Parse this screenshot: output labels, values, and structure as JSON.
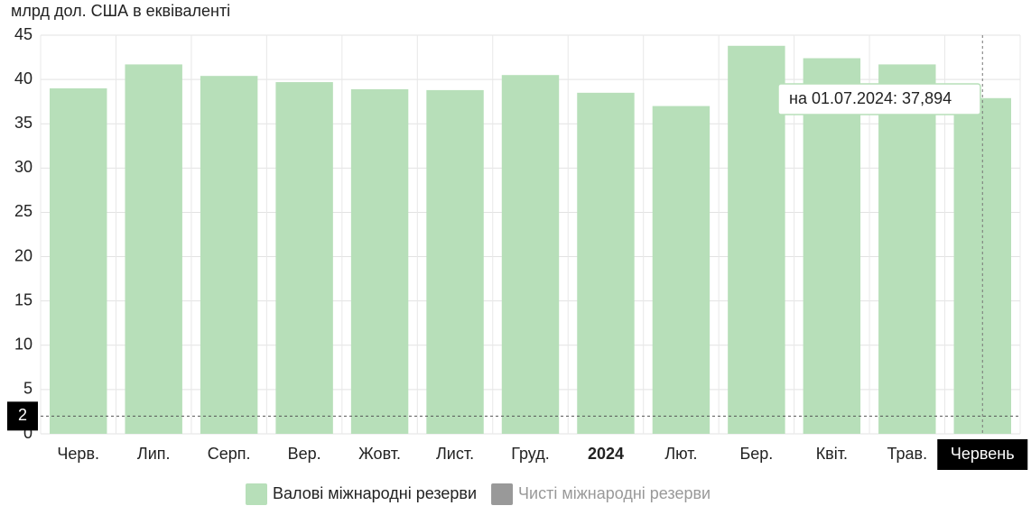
{
  "chart_data": {
    "type": "bar",
    "title": "млрд дол. США в еквіваленті",
    "categories": [
      "Черв.",
      "Лип.",
      "Серп.",
      "Вер.",
      "Жовт.",
      "Лист.",
      "Груд.",
      "2024",
      "Лют.",
      "Бер.",
      "Квіт.",
      "Трав.",
      "Червень"
    ],
    "bold_category": 7,
    "highlight_index": 12,
    "series": [
      {
        "name": "Валові міжнародні резерви",
        "color": "#b7dfb9",
        "values": [
          39.0,
          41.7,
          40.4,
          39.7,
          38.9,
          38.8,
          40.5,
          38.5,
          37.0,
          43.8,
          42.4,
          41.7,
          37.894
        ]
      },
      {
        "name": "Чисті міжнародні резерви",
        "color": "#999999",
        "visible": false
      }
    ],
    "tooltip": "на 01.07.2024: 37,894",
    "crosshair_y": 2,
    "ylim": [
      0,
      45
    ],
    "yticks": [
      0,
      5,
      10,
      15,
      20,
      25,
      30,
      35,
      40,
      45
    ],
    "grid": true
  }
}
